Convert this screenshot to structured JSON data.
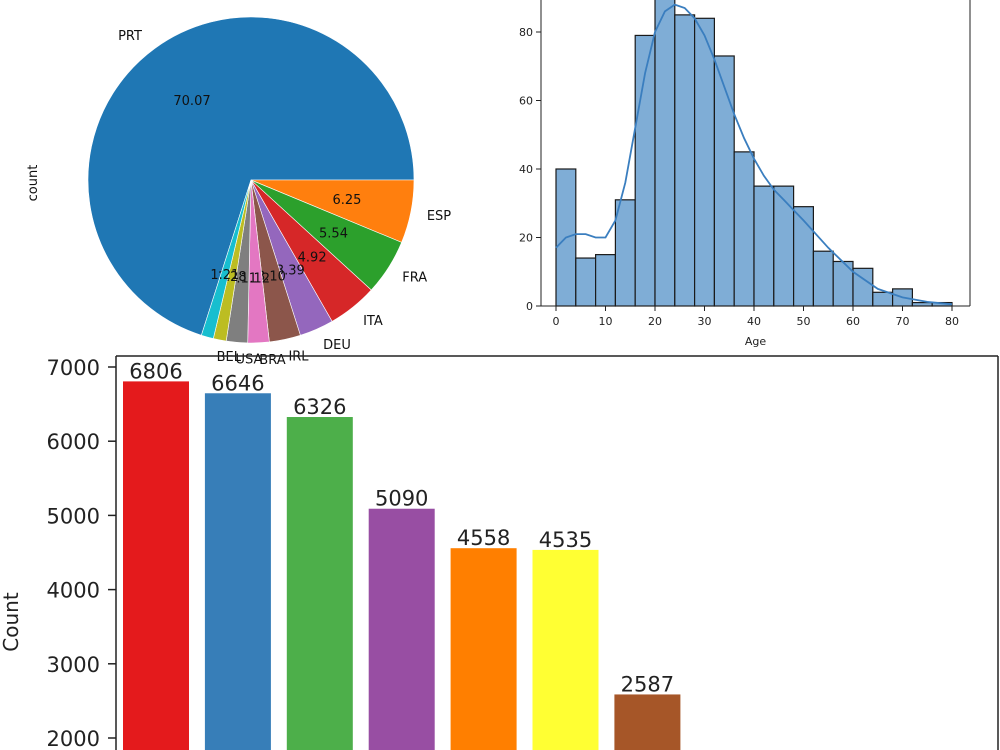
{
  "chart_data": [
    {
      "type": "pie",
      "ylabel": "count",
      "slices": [
        {
          "label": "PRT",
          "pct_label": "70.07",
          "value": 70.07,
          "color": "#1f77b4"
        },
        {
          "label": "ESP",
          "pct_label": "6.25",
          "value": 6.25,
          "color": "#ff7f0e"
        },
        {
          "label": "FRA",
          "pct_label": "5.54",
          "value": 5.54,
          "color": "#2ca02c"
        },
        {
          "label": "ITA",
          "pct_label": "4.92",
          "value": 4.92,
          "color": "#d62728"
        },
        {
          "label": "DEU",
          "pct_label": "3.39",
          "value": 3.39,
          "color": "#9467bd"
        },
        {
          "label": "IRL",
          "pct_label": "3.10",
          "value": 3.1,
          "color": "#8c564b"
        },
        {
          "label": "BRA",
          "pct_label": "2.12",
          "value": 2.12,
          "color": "#e377c2"
        },
        {
          "label": "USA",
          "pct_label": "2.11",
          "value": 2.11,
          "color": "#7f7f7f"
        },
        {
          "label": "BEL",
          "pct_label": "1.28",
          "value": 1.28,
          "color": "#bcbd22"
        },
        {
          "label": "",
          "pct_label": "1.21",
          "value": 1.21,
          "color": "#17becf"
        }
      ]
    },
    {
      "type": "histogram",
      "xlabel": "Age",
      "xlim": [
        -3,
        84
      ],
      "ylim": [
        0,
        90
      ],
      "x_ticks": [
        0,
        10,
        20,
        30,
        40,
        50,
        60,
        70,
        80
      ],
      "y_ticks": [
        0,
        20,
        40,
        60,
        80
      ],
      "bin_width": 4,
      "bins_start": [
        0,
        4,
        8,
        12,
        16,
        20,
        24,
        28,
        32,
        36,
        40,
        44,
        48,
        52,
        56,
        60,
        64,
        68,
        72,
        76
      ],
      "counts": [
        40,
        14,
        15,
        31,
        79,
        90,
        85,
        84,
        73,
        45,
        35,
        35,
        29,
        16,
        13,
        11,
        4,
        5,
        1,
        1
      ],
      "kde_x": [
        0,
        2,
        4,
        6,
        8,
        10,
        12,
        14,
        16,
        18,
        20,
        22,
        24,
        26,
        28,
        30,
        32,
        34,
        36,
        38,
        40,
        42,
        44,
        46,
        48,
        50,
        55,
        60,
        65,
        70,
        75,
        80
      ],
      "kde_y": [
        17,
        20,
        21,
        21,
        20,
        20,
        25,
        36,
        52,
        68,
        80,
        86,
        88,
        87,
        84,
        79,
        72,
        64,
        56,
        49,
        43,
        38,
        34,
        31,
        28,
        25,
        17,
        10,
        5,
        2.5,
        1.2,
        0.5
      ],
      "bar_color": "#7fadd6",
      "line_color": "#3a7ebf"
    },
    {
      "type": "bar",
      "ylabel": "Count",
      "ylim_visible": [
        1800,
        7200
      ],
      "y_ticks": [
        2000,
        3000,
        4000,
        5000,
        6000,
        7000
      ],
      "values": [
        6806,
        6646,
        6326,
        5090,
        4558,
        4535,
        2587
      ],
      "value_labels": [
        "6806",
        "6646",
        "6326",
        "5090",
        "4558",
        "4535",
        "2587"
      ],
      "colors": [
        "#e41a1c",
        "#377eb8",
        "#4daf4a",
        "#984ea3",
        "#ff7f00",
        "#ffff33",
        "#a65628"
      ]
    }
  ]
}
